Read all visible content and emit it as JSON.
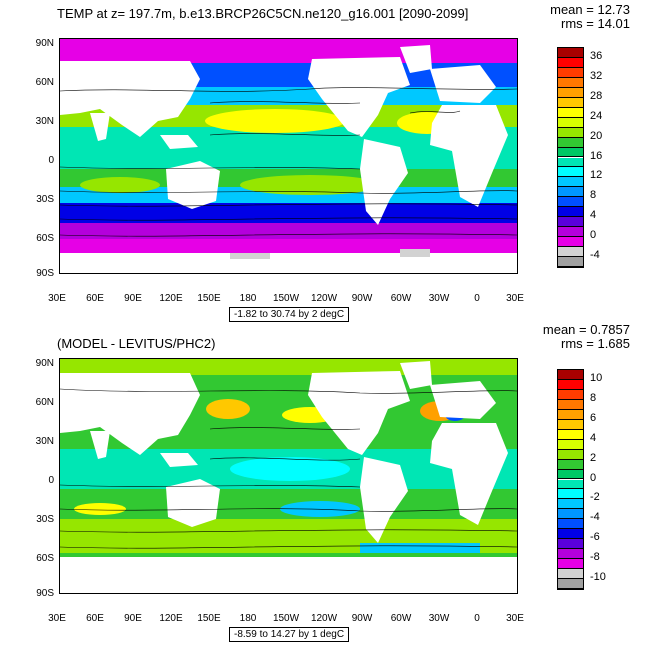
{
  "top_panel": {
    "title": "TEMP at z= 197.7m, b.e13.BRCP26C5CN.ne120_g16.001 [2090-2099]",
    "mean": "mean = 12.73",
    "rms": "rms = 14.01",
    "contour_info": "-1.82 to 30.74 by 2 degC",
    "colorbar": {
      "labels": [
        "36",
        "32",
        "28",
        "24",
        "20",
        "16",
        "12",
        "8",
        "4",
        "0",
        "-4"
      ],
      "colors": [
        "#a80000",
        "#ff0000",
        "#ff3c00",
        "#ff7800",
        "#ffa000",
        "#ffc800",
        "#ffff00",
        "#d7ff00",
        "#96e600",
        "#32c832",
        "#00c864",
        "#00e6b4",
        "#00ffff",
        "#00c8ff",
        "#0096ff",
        "#0050ff",
        "#0000e6",
        "#5a00dc",
        "#b400dc",
        "#e600e6",
        "#d2d2d2",
        "#a0a0a0"
      ]
    }
  },
  "bottom_panel": {
    "title": "(MODEL - LEVITUS/PHC2)",
    "mean": "mean = 0.7857",
    "rms": "rms = 1.685",
    "contour_info": "-8.59 to 14.27 by 1 degC",
    "colorbar": {
      "labels": [
        "10",
        "8",
        "6",
        "4",
        "2",
        "0",
        "-2",
        "-4",
        "-6",
        "-8",
        "-10"
      ],
      "colors": [
        "#a80000",
        "#ff0000",
        "#ff3c00",
        "#ff7800",
        "#ffa000",
        "#ffc800",
        "#ffff00",
        "#d7ff00",
        "#96e600",
        "#32c832",
        "#00c864",
        "#00e6b4",
        "#00ffff",
        "#00c8ff",
        "#0096ff",
        "#0050ff",
        "#0000e6",
        "#5a00dc",
        "#b400dc",
        "#e600e6",
        "#d2d2d2",
        "#a0a0a0"
      ]
    }
  },
  "axes": {
    "lat_labels": [
      "90N",
      "60N",
      "30N",
      "0",
      "30S",
      "60S",
      "90S"
    ],
    "lon_labels": [
      "30E",
      "60E",
      "90E",
      "120E",
      "150E",
      "180",
      "150W",
      "120W",
      "90W",
      "60W",
      "30W",
      "0",
      "30E"
    ]
  }
}
